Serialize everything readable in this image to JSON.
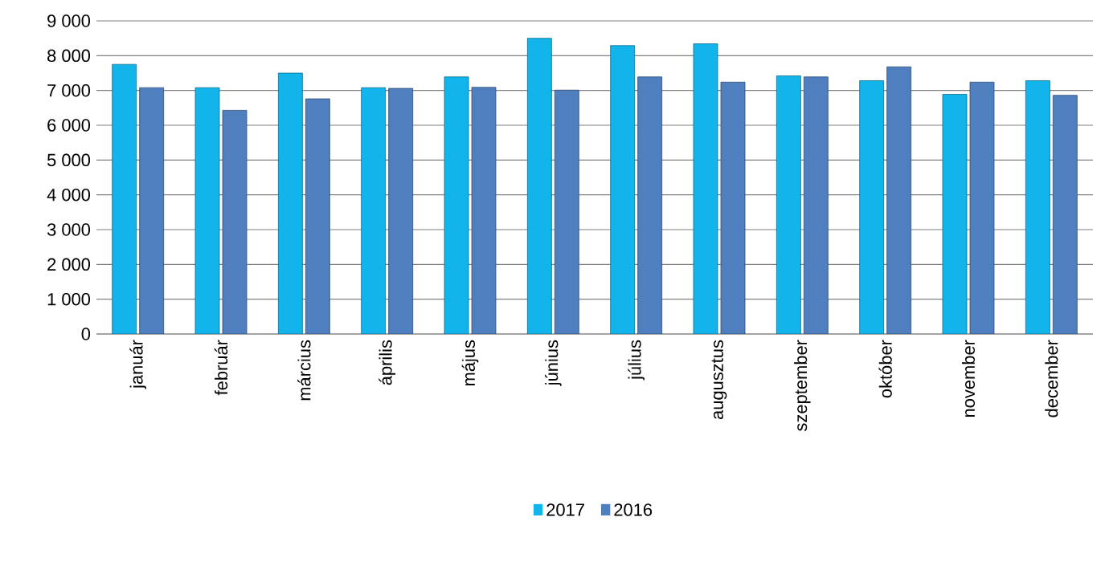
{
  "chart_data": {
    "type": "bar",
    "categories": [
      "január",
      "február",
      "március",
      "április",
      "május",
      "június",
      "július",
      "augusztus",
      "szeptember",
      "október",
      "november",
      "december"
    ],
    "series": [
      {
        "name": "2017",
        "color": "#12b4ec",
        "values": [
          7750,
          7080,
          7500,
          7080,
          7390,
          8500,
          8290,
          8340,
          7420,
          7280,
          6890,
          7280
        ]
      },
      {
        "name": "2016",
        "color": "#4f7fbf",
        "values": [
          7080,
          6430,
          6760,
          7060,
          7090,
          7010,
          7390,
          7240,
          7390,
          7680,
          7240,
          6860
        ]
      }
    ],
    "ylim": [
      0,
      9000
    ],
    "yticks": [
      {
        "value": 0,
        "label": "0"
      },
      {
        "value": 1000,
        "label": "1 000"
      },
      {
        "value": 2000,
        "label": "2 000"
      },
      {
        "value": 3000,
        "label": "3 000"
      },
      {
        "value": 4000,
        "label": "4 000"
      },
      {
        "value": 5000,
        "label": "5 000"
      },
      {
        "value": 6000,
        "label": "6 000"
      },
      {
        "value": 7000,
        "label": "7 000"
      },
      {
        "value": 8000,
        "label": "8 000"
      },
      {
        "value": 9000,
        "label": "9 000"
      }
    ],
    "grid": "y",
    "legend": "bottom"
  }
}
